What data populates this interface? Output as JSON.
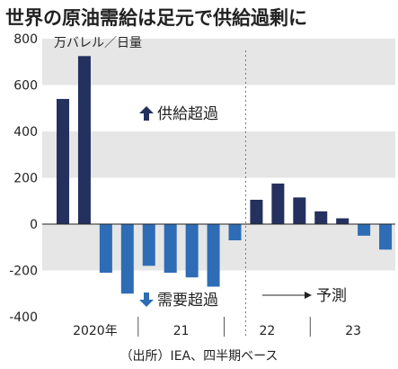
{
  "title": "世界の原油需給は足元で供給過剰に",
  "source": "（出所）IEA、四半期ベース",
  "colors": {
    "actual": "#24305e",
    "shortage": "#2e6db5",
    "forecast": "#24305e",
    "band": "#e6e6e6"
  },
  "chart_data": {
    "type": "bar",
    "unit_label": "万バレル／日量",
    "ylim": [
      -400,
      800
    ],
    "yticks": [
      800,
      600,
      400,
      200,
      0,
      -200,
      -400
    ],
    "values": [
      540,
      725,
      -210,
      -300,
      -180,
      -210,
      -230,
      -270,
      -70,
      105,
      175,
      115,
      55,
      25,
      -50,
      -110
    ],
    "year_labels": [
      {
        "label": "2020年",
        "start": 0,
        "end": 3
      },
      {
        "label": "21",
        "start": 4,
        "end": 7
      },
      {
        "label": "22",
        "start": 8,
        "end": 11
      },
      {
        "label": "23",
        "start": 12,
        "end": 15
      }
    ],
    "forecast_start_index": 9,
    "annotations": {
      "surplus": "供給超過",
      "deficit": "需要超過",
      "forecast": "予測"
    }
  }
}
